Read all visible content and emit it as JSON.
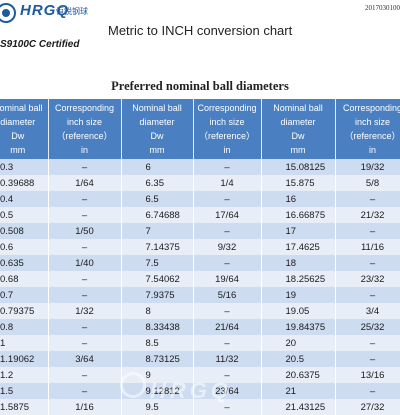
{
  "header": {
    "logo_text": "HRGQ",
    "logo_cn": "恒锐钢球",
    "certification": "S9100C Certified",
    "doc_number": "2017030100",
    "title": "Metric to INCH conversion chart"
  },
  "table": {
    "subtitle": "Preferred nominal ball diameters",
    "headers": {
      "dia_line1": "Nominal ball",
      "dia_line2": "diameter",
      "dia_line3": "Dw",
      "dia_line4": "mm",
      "ref_line1": "Corresponding",
      "ref_line2": "inch size",
      "ref_line3": "（reference）",
      "ref_line4": "in"
    },
    "rows": [
      [
        "0.3",
        "–",
        "6",
        "–",
        "15.08125",
        "19/32"
      ],
      [
        "0.39688",
        "1/64",
        "6.35",
        "1/4",
        "15.875",
        "5/8"
      ],
      [
        "0.4",
        "–",
        "6.5",
        "–",
        "16",
        "–"
      ],
      [
        "0.5",
        "–",
        "6.74688",
        "17/64",
        "16.66875",
        "21/32"
      ],
      [
        "0.508",
        "1/50",
        "7",
        "–",
        "17",
        "–"
      ],
      [
        "0.6",
        "–",
        "7.14375",
        "9/32",
        "17.4625",
        "11/16"
      ],
      [
        "0.635",
        "1/40",
        "7.5",
        "–",
        "18",
        "–"
      ],
      [
        "0.68",
        "–",
        "7.54062",
        "19/64",
        "18.25625",
        "23/32"
      ],
      [
        "0.7",
        "–",
        "7.9375",
        "5/16",
        "19",
        "–"
      ],
      [
        "0.79375",
        "1/32",
        "8",
        "–",
        "19.05",
        "3/4"
      ],
      [
        "0.8",
        "–",
        "8.33438",
        "21/64",
        "19.84375",
        "25/32"
      ],
      [
        "1",
        "–",
        "8.5",
        "–",
        "20",
        "–"
      ],
      [
        "1.19062",
        "3/64",
        "8.73125",
        "11/32",
        "20.5",
        "–"
      ],
      [
        "1.2",
        "–",
        "9",
        "–",
        "20.6375",
        "13/16"
      ],
      [
        "1.5",
        "–",
        "9.12812",
        "23/64",
        "21",
        "–"
      ],
      [
        "1.5875",
        "1/16",
        "9.5",
        "–",
        "21.43125",
        "27/32"
      ]
    ]
  },
  "watermark": {
    "text": "HRGQ"
  }
}
